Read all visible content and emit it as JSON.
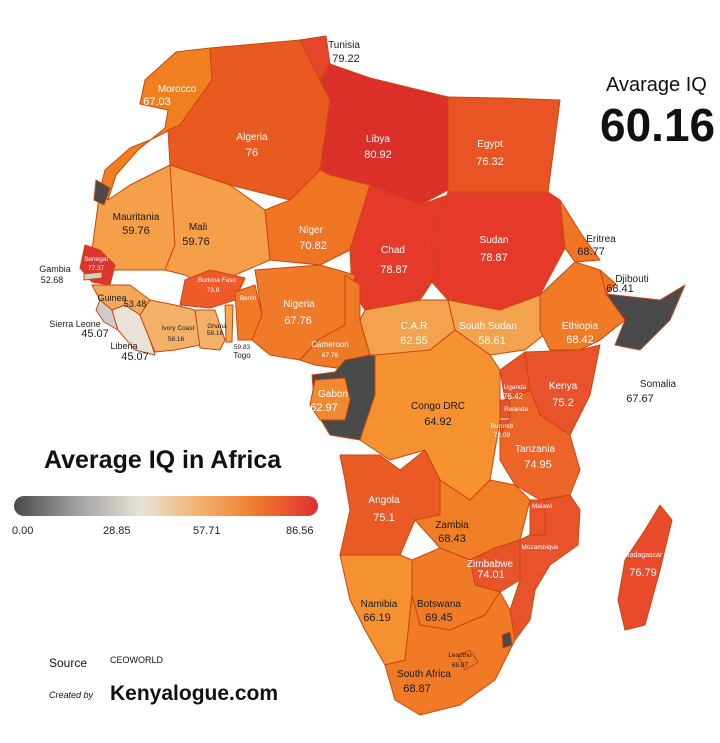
{
  "colors": {
    "scale_stops": [
      "#4a4a4a",
      "#a6a6a6",
      "#e8e2d8",
      "#f2b06a",
      "#ef7a2a",
      "#de3033"
    ],
    "no_data": "#4a4a4a",
    "border": "#c9470f"
  },
  "average": {
    "title": "Avarage IQ",
    "value": "60.16"
  },
  "title": "Average IQ in Africa",
  "scale": {
    "min": "0.00",
    "q1": "28.85",
    "q2": "57.71",
    "max": "86.56"
  },
  "source": {
    "label": "Source",
    "value": "CEOWORLD"
  },
  "credit": {
    "label": "Created by",
    "value": "Kenyalogue.com"
  },
  "countries": [
    {
      "id": "morocco",
      "name": "Morocco",
      "value": "67.03"
    },
    {
      "id": "algeria",
      "name": "Algeria",
      "value": "76"
    },
    {
      "id": "tunisia",
      "name": "Tunisia",
      "value": "79.22"
    },
    {
      "id": "libya",
      "name": "Libya",
      "value": "80.92"
    },
    {
      "id": "egypt",
      "name": "Egypt",
      "value": "76.32"
    },
    {
      "id": "mauritania",
      "name": "Mauritania",
      "value": "59.76"
    },
    {
      "id": "mali",
      "name": "Mali",
      "value": "59.76"
    },
    {
      "id": "niger",
      "name": "Niger",
      "value": "70.82"
    },
    {
      "id": "chad",
      "name": "Chad",
      "value": "78.87"
    },
    {
      "id": "sudan",
      "name": "Sudan",
      "value": "78.87"
    },
    {
      "id": "eritrea",
      "name": "Eritrea",
      "value": "68.77"
    },
    {
      "id": "djibouti",
      "name": "Djibouti",
      "value": "68.41"
    },
    {
      "id": "senegal",
      "name": "Senegal",
      "value": "77.37"
    },
    {
      "id": "gambia",
      "name": "Gambia",
      "value": "52.68"
    },
    {
      "id": "guinea",
      "name": "Guinea",
      "value": "53.48"
    },
    {
      "id": "sierra-leone",
      "name": "Sierra Leone",
      "value": "45.07"
    },
    {
      "id": "liberia",
      "name": "Liberia",
      "value": "45.07"
    },
    {
      "id": "ivory-coast",
      "name": "Ivory Coast",
      "value": "58.16"
    },
    {
      "id": "ghana",
      "name": "Ghana",
      "value": "58.16"
    },
    {
      "id": "togo",
      "name": "Togo",
      "value": "59.83"
    },
    {
      "id": "burkina-faso",
      "name": "Burkina Faso",
      "value": "73.8"
    },
    {
      "id": "benin",
      "name": "Benin",
      "value": ""
    },
    {
      "id": "nigeria",
      "name": "Nigeria",
      "value": "67.76"
    },
    {
      "id": "cameroon",
      "name": "Cameroon",
      "value": "67.76"
    },
    {
      "id": "car",
      "name": "C.A.R",
      "value": "62.55"
    },
    {
      "id": "south-sudan",
      "name": "South Sudan",
      "value": "58.61"
    },
    {
      "id": "ethiopia",
      "name": "Ethiopia",
      "value": "68.42"
    },
    {
      "id": "somalia",
      "name": "Somalia",
      "value": "67.67"
    },
    {
      "id": "gabon",
      "name": "Gabon",
      "value": "62.97"
    },
    {
      "id": "congo-drc",
      "name": "Congo DRC",
      "value": "64.92"
    },
    {
      "id": "uganda",
      "name": "Uganda",
      "value": "76.42"
    },
    {
      "id": "kenya",
      "name": "Kenya",
      "value": "75.2"
    },
    {
      "id": "rwanda",
      "name": "Rwanda",
      "value": ""
    },
    {
      "id": "burundi",
      "name": "Burundi",
      "value": "72.09"
    },
    {
      "id": "tanzania",
      "name": "Tanzania",
      "value": "74.95"
    },
    {
      "id": "angola",
      "name": "Angola",
      "value": "75.1"
    },
    {
      "id": "zambia",
      "name": "Zambia",
      "value": "68.43"
    },
    {
      "id": "malawi",
      "name": "Malawi",
      "value": ""
    },
    {
      "id": "mozambique",
      "name": "Mozambique",
      "value": ""
    },
    {
      "id": "zimbabwe",
      "name": "Zimbabwe",
      "value": "74.01"
    },
    {
      "id": "madagascar",
      "name": "Madagascar",
      "value": "76.79"
    },
    {
      "id": "namibia",
      "name": "Namibia",
      "value": "66.19"
    },
    {
      "id": "botswana",
      "name": "Botswana",
      "value": "69.45"
    },
    {
      "id": "lesotho",
      "name": "Lesotho",
      "value": "68.87"
    },
    {
      "id": "south-africa",
      "name": "South Africa",
      "value": "68.87"
    }
  ]
}
